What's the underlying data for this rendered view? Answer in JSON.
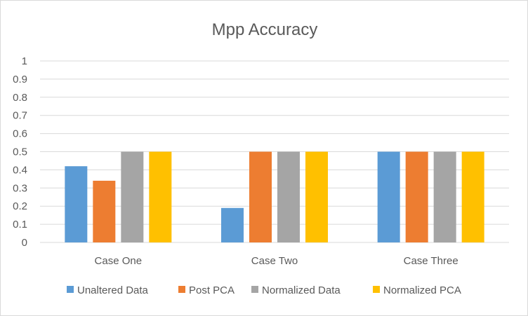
{
  "chart_data": {
    "type": "bar",
    "title": "Mpp Accuracy",
    "xlabel": "",
    "ylabel": "",
    "ylim": [
      0,
      1
    ],
    "yticks": [
      "0",
      "0.1",
      "0.2",
      "0.3",
      "0.4",
      "0.5",
      "0.6",
      "0.7",
      "0.8",
      "0.9",
      "1"
    ],
    "grid": true,
    "legend_position": "bottom",
    "categories": [
      "Case One",
      "Case Two",
      "Case Three"
    ],
    "series": [
      {
        "name": "Unaltered Data",
        "color": "#5B9BD5",
        "values": [
          0.42,
          0.19,
          0.5
        ]
      },
      {
        "name": "Post PCA",
        "color": "#ED7D31",
        "values": [
          0.34,
          0.5,
          0.5
        ]
      },
      {
        "name": "Normalized Data",
        "color": "#A5A5A5",
        "values": [
          0.5,
          0.5,
          0.5
        ]
      },
      {
        "name": "Normalized PCA",
        "color": "#FFC000",
        "values": [
          0.5,
          0.5,
          0.5
        ]
      }
    ]
  }
}
